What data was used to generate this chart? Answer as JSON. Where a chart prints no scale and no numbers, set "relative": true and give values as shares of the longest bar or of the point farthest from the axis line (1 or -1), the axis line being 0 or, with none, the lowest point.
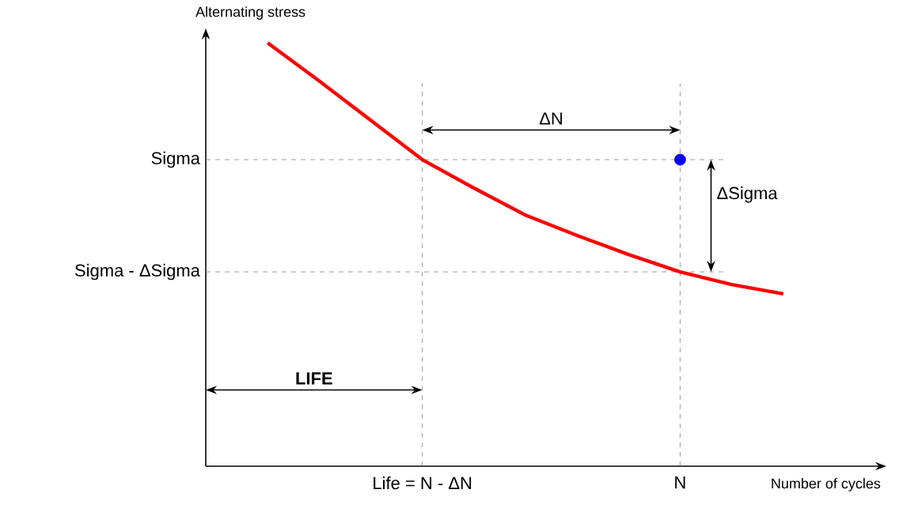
{
  "chart_data": {
    "type": "line",
    "relative": true,
    "xlabel": "Number of cycles",
    "ylabel": "Alternating stress",
    "categories": [
      null,
      null,
      null,
      "Life = N - ΔN",
      null,
      null,
      null,
      null,
      "N",
      null,
      null
    ],
    "series": [
      {
        "color": "#ff0000",
        "marker": "none",
        "values": [
          1.0,
          0.91,
          0.817,
          0.724,
          0.657,
          0.593,
          0.545,
          0.5,
          0.459,
          0.429,
          0.407
        ]
      },
      {
        "type": "scatter",
        "color": "#0000ff",
        "marker": "circle",
        "values": [
          null,
          null,
          null,
          null,
          null,
          null,
          null,
          null,
          0.724,
          null,
          null
        ]
      }
    ],
    "ref_lines": [
      {
        "axis": "y",
        "value": 0.724,
        "label": "Sigma",
        "color": "#808080",
        "line_style": "dashed"
      },
      {
        "axis": "y",
        "value": 0.459,
        "label": "Sigma - ΔSigma",
        "color": "#808080",
        "line_style": "dashed"
      },
      {
        "axis": "x",
        "value": "Life = N - ΔN",
        "color": "#808080",
        "line_style": "dashed"
      },
      {
        "axis": "x",
        "value": "N",
        "color": "#808080",
        "line_style": "dashed"
      }
    ],
    "annotations": [
      "ΔN",
      "ΔSigma",
      "**LIFE**"
    ]
  }
}
